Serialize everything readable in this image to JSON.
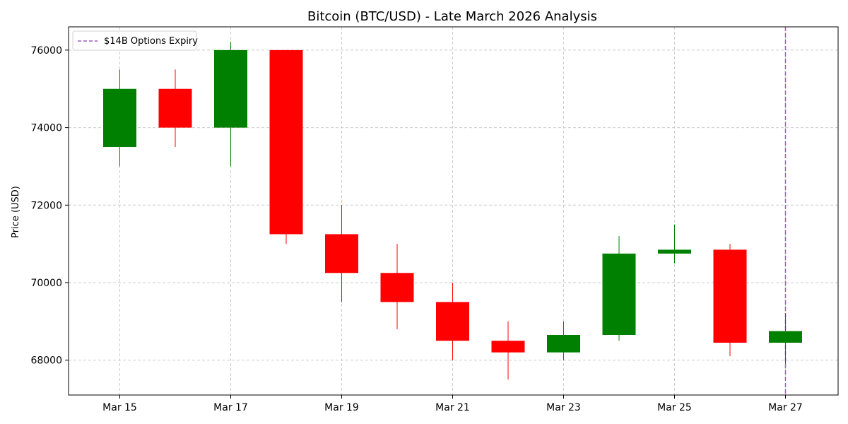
{
  "chart_data": {
    "type": "candlestick",
    "title": "Bitcoin (BTC/USD) - Late March 2026 Analysis",
    "xlabel": "",
    "ylabel": "Price (USD)",
    "ylim": [
      67100,
      76600
    ],
    "grid": true,
    "legend_placement": "top-left",
    "x_tick_labels": [
      "Mar 15",
      "Mar 17",
      "Mar 19",
      "Mar 21",
      "Mar 23",
      "Mar 25",
      "Mar 27"
    ],
    "x_tick_dates": [
      "2026-03-15",
      "2026-03-17",
      "2026-03-19",
      "2026-03-21",
      "2026-03-23",
      "2026-03-25",
      "2026-03-27"
    ],
    "y_ticks": [
      68000,
      70000,
      72000,
      74000,
      76000
    ],
    "candles": [
      {
        "date": "2026-03-15",
        "open": 73500,
        "high": 75500,
        "low": 73000,
        "close": 75000
      },
      {
        "date": "2026-03-16",
        "open": 75000,
        "high": 75500,
        "low": 73500,
        "close": 74000
      },
      {
        "date": "2026-03-17",
        "open": 74000,
        "high": 76200,
        "low": 73000,
        "close": 76000
      },
      {
        "date": "2026-03-18",
        "open": 76000,
        "high": 76000,
        "low": 71000,
        "close": 71250
      },
      {
        "date": "2026-03-19",
        "open": 71250,
        "high": 72000,
        "low": 69500,
        "close": 70250
      },
      {
        "date": "2026-03-20",
        "open": 70250,
        "high": 71000,
        "low": 68800,
        "close": 69500
      },
      {
        "date": "2026-03-21",
        "open": 69500,
        "high": 70000,
        "low": 68000,
        "close": 68500
      },
      {
        "date": "2026-03-22",
        "open": 68500,
        "high": 69000,
        "low": 67500,
        "close": 68200
      },
      {
        "date": "2026-03-23",
        "open": 68200,
        "high": 69000,
        "low": 68000,
        "close": 68650
      },
      {
        "date": "2026-03-24",
        "open": 68650,
        "high": 71200,
        "low": 68500,
        "close": 70750
      },
      {
        "date": "2026-03-25",
        "open": 70750,
        "high": 71500,
        "low": 70500,
        "close": 70850
      },
      {
        "date": "2026-03-26",
        "open": 70850,
        "high": 71000,
        "low": 68100,
        "close": 68450
      },
      {
        "date": "2026-03-27",
        "open": 68450,
        "high": 69200,
        "low": 67900,
        "close": 68750
      }
    ],
    "annotations": [
      {
        "type": "vline",
        "date": "2026-03-27",
        "label": "$14B Options Expiry",
        "style": "dashed"
      }
    ]
  },
  "colors": {
    "up": "#008000",
    "down": "#ff0000",
    "expiry_line": "#a05aba",
    "grid": "#cccccc",
    "axis": "#000000"
  }
}
